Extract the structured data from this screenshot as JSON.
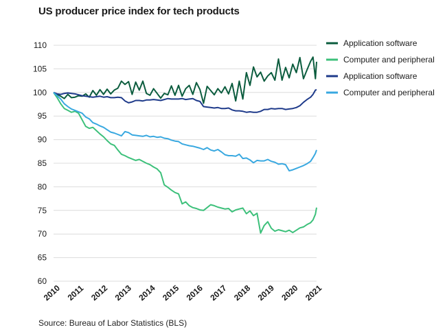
{
  "title": "US producer price index for tech products",
  "source": "Source: Bureau of Labor Statistics (BLS)",
  "chart_data": {
    "type": "line",
    "title": "US producer price index for tech products",
    "xlabel": "",
    "ylabel": "",
    "ylim": [
      60,
      110
    ],
    "yticks": [
      60,
      65,
      70,
      75,
      80,
      85,
      90,
      95,
      100,
      105,
      110
    ],
    "xlim": [
      2010,
      2021.05
    ],
    "xticks": [
      2010,
      2011,
      2012,
      2013,
      2014,
      2015,
      2016,
      2017,
      2018,
      2019,
      2020,
      2021
    ],
    "legend_position": "right",
    "grid": "horizontal",
    "series": [
      {
        "name": "Application software",
        "color": "#0b5c3e",
        "x": [
          2010,
          2010.15,
          2010.3,
          2010.45,
          2010.6,
          2010.75,
          2010.9,
          2011.05,
          2011.2,
          2011.35,
          2011.5,
          2011.65,
          2011.8,
          2011.95,
          2012.1,
          2012.25,
          2012.4,
          2012.55,
          2012.7,
          2012.85,
          2013.0,
          2013.15,
          2013.3,
          2013.45,
          2013.6,
          2013.75,
          2013.9,
          2014.05,
          2014.2,
          2014.35,
          2014.5,
          2014.65,
          2014.8,
          2014.95,
          2015.1,
          2015.25,
          2015.4,
          2015.55,
          2015.7,
          2015.85,
          2016.0,
          2016.15,
          2016.3,
          2016.45,
          2016.6,
          2016.75,
          2016.9,
          2017.05,
          2017.2,
          2017.35,
          2017.5,
          2017.65,
          2017.8,
          2017.95,
          2018.1,
          2018.25,
          2018.4,
          2018.55,
          2018.7,
          2018.85,
          2019.0,
          2019.15,
          2019.3,
          2019.45,
          2019.6,
          2019.75,
          2019.9,
          2020.05,
          2020.2,
          2020.35,
          2020.5,
          2020.65,
          2020.8,
          2020.9,
          2021.0,
          2021.05
        ],
        "values": [
          100,
          99.6,
          99.2,
          98.7,
          99.6,
          98.9,
          99.0,
          99.3,
          99.2,
          99.7,
          99.0,
          100.4,
          99.4,
          100.6,
          99.6,
          100.7,
          99.7,
          100.5,
          100.9,
          102.4,
          101.7,
          102.3,
          99.6,
          102.2,
          100.5,
          102.4,
          99.8,
          99.4,
          100.8,
          99.8,
          98.8,
          99.8,
          99.5,
          101.4,
          99.4,
          101.5,
          99.2,
          100.8,
          101.5,
          99.6,
          102.1,
          100.6,
          97.7,
          101.3,
          100.4,
          99.5,
          100.8,
          99.9,
          101.2,
          99.7,
          101.9,
          98.2,
          102.4,
          98.6,
          104.2,
          101.5,
          105.4,
          103.3,
          104.3,
          102.4,
          103.5,
          104.2,
          102.6,
          107.1,
          102.6,
          105.3,
          103.1,
          106.0,
          104.2,
          107.4,
          102.9,
          104.8,
          106.6,
          107.5,
          102.9,
          106.5
        ]
      },
      {
        "name": "Computer and peripheral",
        "color": "#3cc07a",
        "x": [
          2010,
          2010.15,
          2010.3,
          2010.45,
          2010.6,
          2010.75,
          2010.9,
          2011.05,
          2011.2,
          2011.35,
          2011.5,
          2011.65,
          2011.8,
          2011.95,
          2012.1,
          2012.25,
          2012.4,
          2012.55,
          2012.7,
          2012.85,
          2013.0,
          2013.15,
          2013.3,
          2013.45,
          2013.6,
          2013.75,
          2013.9,
          2014.05,
          2014.2,
          2014.35,
          2014.5,
          2014.65,
          2014.8,
          2014.95,
          2015.1,
          2015.25,
          2015.4,
          2015.55,
          2015.7,
          2015.85,
          2016.0,
          2016.15,
          2016.3,
          2016.45,
          2016.6,
          2016.75,
          2016.9,
          2017.05,
          2017.2,
          2017.35,
          2017.5,
          2017.65,
          2017.8,
          2017.95,
          2018.1,
          2018.25,
          2018.4,
          2018.55,
          2018.7,
          2018.85,
          2019.0,
          2019.15,
          2019.3,
          2019.45,
          2019.6,
          2019.75,
          2019.9,
          2020.05,
          2020.2,
          2020.35,
          2020.5,
          2020.65,
          2020.8,
          2020.9,
          2021.0,
          2021.05
        ],
        "values": [
          100,
          98.9,
          97.6,
          96.6,
          96.2,
          95.8,
          96.0,
          95.6,
          94.2,
          92.8,
          92.4,
          92.6,
          91.9,
          91.2,
          90.6,
          89.8,
          89.1,
          88.8,
          87.8,
          86.9,
          86.6,
          86.2,
          85.9,
          85.6,
          85.8,
          85.4,
          85.0,
          84.7,
          84.2,
          83.8,
          83.0,
          80.4,
          79.9,
          79.3,
          78.8,
          78.5,
          76.4,
          76.8,
          76.0,
          75.6,
          75.4,
          75.1,
          75.0,
          75.6,
          76.2,
          76.0,
          75.7,
          75.5,
          75.3,
          75.4,
          74.7,
          75.1,
          75.3,
          75.5,
          74.3,
          74.9,
          73.9,
          74.4,
          70.2,
          71.8,
          72.6,
          71.2,
          70.6,
          70.9,
          70.7,
          70.5,
          70.8,
          70.3,
          70.8,
          71.3,
          71.5,
          72.0,
          72.4,
          73.0,
          74.2,
          75.6
        ]
      },
      {
        "name": "Application software",
        "color": "#1e3a8a",
        "x": [
          2010,
          2010.15,
          2010.3,
          2010.45,
          2010.6,
          2010.75,
          2010.9,
          2011.05,
          2011.2,
          2011.35,
          2011.5,
          2011.65,
          2011.8,
          2011.95,
          2012.1,
          2012.25,
          2012.4,
          2012.55,
          2012.7,
          2012.85,
          2013.0,
          2013.15,
          2013.3,
          2013.45,
          2013.6,
          2013.75,
          2013.9,
          2014.05,
          2014.2,
          2014.35,
          2014.5,
          2014.65,
          2014.8,
          2014.95,
          2015.1,
          2015.25,
          2015.4,
          2015.55,
          2015.7,
          2015.85,
          2016.0,
          2016.15,
          2016.3,
          2016.45,
          2016.6,
          2016.75,
          2016.9,
          2017.05,
          2017.2,
          2017.35,
          2017.5,
          2017.65,
          2017.8,
          2017.95,
          2018.1,
          2018.25,
          2018.4,
          2018.55,
          2018.7,
          2018.85,
          2019.0,
          2019.15,
          2019.3,
          2019.45,
          2019.6,
          2019.75,
          2019.9,
          2020.05,
          2020.2,
          2020.35,
          2020.5,
          2020.65,
          2020.8,
          2020.9,
          2021.0,
          2021.05
        ],
        "values": [
          100,
          99.7,
          99.6,
          99.8,
          99.9,
          99.8,
          99.7,
          99.5,
          99.3,
          99.2,
          99.1,
          99.0,
          99.1,
          99.2,
          99.0,
          99.1,
          98.9,
          98.9,
          99.0,
          98.9,
          98.2,
          97.8,
          98.0,
          98.3,
          98.3,
          98.2,
          98.4,
          98.4,
          98.5,
          98.4,
          98.3,
          98.5,
          98.7,
          98.6,
          98.6,
          98.6,
          98.7,
          98.5,
          98.6,
          98.7,
          98.3,
          98.1,
          97.0,
          96.9,
          96.8,
          96.7,
          96.8,
          96.6,
          96.6,
          96.7,
          96.3,
          96.1,
          96.1,
          96.0,
          95.8,
          95.9,
          95.8,
          95.8,
          96.0,
          96.4,
          96.4,
          96.6,
          96.5,
          96.6,
          96.6,
          96.4,
          96.5,
          96.6,
          96.8,
          97.2,
          97.9,
          98.5,
          99.0,
          99.6,
          100.5,
          100.6
        ]
      },
      {
        "name": "Computer and peripheral",
        "color": "#38a8e0",
        "x": [
          2010,
          2010.15,
          2010.3,
          2010.45,
          2010.6,
          2010.75,
          2010.9,
          2011.05,
          2011.2,
          2011.35,
          2011.5,
          2011.65,
          2011.8,
          2011.95,
          2012.1,
          2012.25,
          2012.4,
          2012.55,
          2012.7,
          2012.85,
          2013.0,
          2013.15,
          2013.3,
          2013.45,
          2013.6,
          2013.75,
          2013.9,
          2014.05,
          2014.2,
          2014.35,
          2014.5,
          2014.65,
          2014.8,
          2014.95,
          2015.1,
          2015.25,
          2015.4,
          2015.55,
          2015.7,
          2015.85,
          2016.0,
          2016.15,
          2016.3,
          2016.45,
          2016.6,
          2016.75,
          2016.9,
          2017.05,
          2017.2,
          2017.35,
          2017.5,
          2017.65,
          2017.8,
          2017.95,
          2018.1,
          2018.25,
          2018.4,
          2018.55,
          2018.7,
          2018.85,
          2019.0,
          2019.15,
          2019.3,
          2019.45,
          2019.6,
          2019.75,
          2019.9,
          2020.05,
          2020.2,
          2020.35,
          2020.5,
          2020.65,
          2020.8,
          2020.9,
          2021.0,
          2021.05
        ],
        "values": [
          100,
          99.3,
          98.6,
          97.6,
          97.0,
          96.5,
          96.2,
          95.9,
          95.6,
          94.8,
          94.4,
          93.6,
          93.3,
          92.9,
          92.6,
          92.1,
          91.6,
          91.4,
          91.1,
          90.8,
          91.7,
          91.5,
          91.0,
          90.9,
          90.8,
          90.7,
          90.9,
          90.6,
          90.7,
          90.5,
          90.6,
          90.3,
          90.2,
          89.9,
          89.7,
          89.6,
          89.1,
          88.9,
          88.7,
          88.6,
          88.4,
          88.2,
          87.9,
          88.3,
          87.8,
          87.6,
          87.9,
          87.4,
          86.8,
          86.6,
          86.6,
          86.5,
          86.9,
          86.0,
          86.1,
          85.7,
          85.1,
          85.6,
          85.5,
          85.5,
          85.8,
          85.4,
          85.2,
          84.8,
          84.9,
          84.7,
          83.4,
          83.6,
          83.9,
          84.2,
          84.5,
          84.9,
          85.4,
          86.2,
          87.1,
          87.8
        ]
      }
    ]
  }
}
